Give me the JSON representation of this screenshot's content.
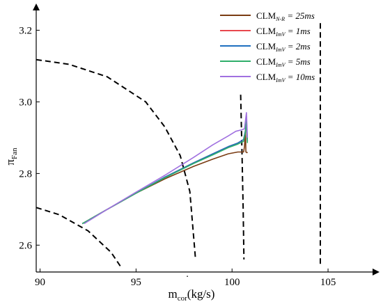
{
  "chart_data": {
    "type": "line",
    "xlabel": {
      "main": "m",
      "sub": "cor",
      "unit": "(kg/s)"
    },
    "ylabel": {
      "main": "π",
      "sub": "Fan"
    },
    "xlim": [
      89.8,
      107.5
    ],
    "ylim": [
      2.525,
      3.265
    ],
    "xticks": [
      90,
      95,
      100,
      105
    ],
    "yticks": [
      2.6,
      2.8,
      3.0,
      3.2
    ],
    "xtick_labels": [
      "90",
      "95",
      "100",
      "105"
    ],
    "ytick_labels": [
      "2.6",
      "2.8",
      "3.0",
      "3.2"
    ],
    "legend_position": "top-right",
    "series": [
      {
        "name": {
          "base": "CLM",
          "sub": "N-R",
          "value": "= 25ms"
        },
        "color": "#7a3b12",
        "x": [
          92.2,
          93.5,
          95.0,
          96.5,
          98.0,
          99.0,
          99.8,
          100.3,
          100.6,
          100.65,
          100.7,
          100.72,
          100.78,
          100.8
        ],
        "y": [
          2.66,
          2.7,
          2.745,
          2.785,
          2.82,
          2.84,
          2.855,
          2.86,
          2.86,
          2.875,
          2.92,
          2.86,
          2.858,
          2.86
        ]
      },
      {
        "name": {
          "base": "CLM",
          "sub": "ImV",
          "value": "= 1ms"
        },
        "color": "#e8474d",
        "x": [
          92.2,
          93.5,
          95.0,
          96.5,
          98.0,
          99.0,
          99.8,
          100.3,
          100.6,
          100.7,
          100.75,
          100.8
        ],
        "y": [
          2.66,
          2.7,
          2.745,
          2.79,
          2.83,
          2.855,
          2.875,
          2.885,
          2.895,
          2.92,
          2.94,
          2.89
        ]
      },
      {
        "name": {
          "base": "CLM",
          "sub": "ImV",
          "value": "= 2ms"
        },
        "color": "#1f6fbf",
        "x": [
          92.2,
          93.5,
          95.0,
          96.5,
          98.0,
          99.0,
          99.8,
          100.3,
          100.6,
          100.7,
          100.75,
          100.8
        ],
        "y": [
          2.66,
          2.7,
          2.745,
          2.79,
          2.83,
          2.855,
          2.875,
          2.885,
          2.895,
          2.92,
          2.95,
          2.89
        ]
      },
      {
        "name": {
          "base": "CLM",
          "sub": "ImV",
          "value": "= 5ms"
        },
        "color": "#2fae6a",
        "x": [
          92.2,
          93.5,
          95.0,
          96.5,
          98.0,
          99.0,
          99.8,
          100.3,
          100.6,
          100.7,
          100.75,
          100.8
        ],
        "y": [
          2.66,
          2.7,
          2.745,
          2.788,
          2.828,
          2.852,
          2.872,
          2.882,
          2.89,
          2.915,
          2.96,
          2.885
        ]
      },
      {
        "name": {
          "base": "CLM",
          "sub": "ImV",
          "value": "= 10ms"
        },
        "color": "#a070e0",
        "x": [
          92.3,
          93.5,
          95.0,
          96.5,
          98.0,
          99.0,
          99.8,
          100.2,
          100.5,
          100.65,
          100.75,
          100.8
        ],
        "y": [
          2.66,
          2.7,
          2.748,
          2.795,
          2.845,
          2.88,
          2.905,
          2.918,
          2.922,
          2.925,
          2.97,
          2.9
        ]
      }
    ],
    "dashed_lines": [
      {
        "x": [
          89.8,
          91.0,
          92.5,
          93.7,
          94.2
        ],
        "y": [
          2.705,
          2.685,
          2.64,
          2.58,
          2.54
        ]
      },
      {
        "x": [
          89.8,
          91.5,
          93.5,
          95.5,
          96.5,
          97.3,
          97.8,
          98.1
        ],
        "y": [
          3.118,
          3.105,
          3.07,
          3.0,
          2.93,
          2.85,
          2.75,
          2.56
        ]
      },
      {
        "x": [
          100.45,
          100.52,
          100.58,
          100.62
        ],
        "y": [
          3.02,
          2.85,
          2.7,
          2.56
        ]
      },
      {
        "x": [
          104.6,
          104.6
        ],
        "y": [
          3.22,
          2.54
        ]
      }
    ]
  }
}
